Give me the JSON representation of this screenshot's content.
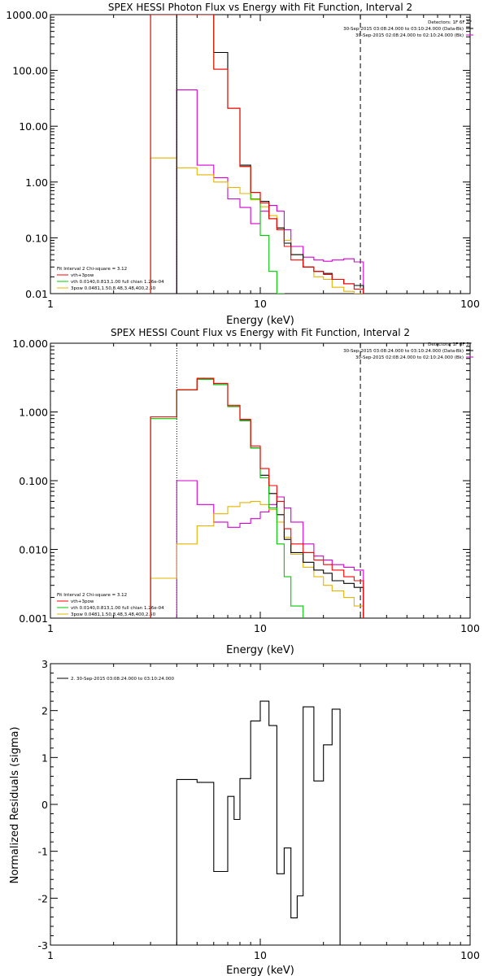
{
  "chart_data": [
    {
      "type": "line",
      "title": "SPEX HESSI Photon Flux vs Energy with Fit Function, Interval 2",
      "xlabel": "Energy (keV)",
      "ylabel": "",
      "xscale": "log",
      "yscale": "log",
      "xlim": [
        1,
        100
      ],
      "ylim": [
        0.01,
        1000
      ],
      "x_tick_labels": [
        "1",
        "10",
        "100"
      ],
      "y_tick_labels": [
        "0.01",
        "0.10",
        "1.00",
        "10.00",
        "100.00",
        "1000.00"
      ],
      "header": [
        "Detectors: 1F 6F 7F",
        "30-Sep-2015 03:08:24.000 to 03:10:24.000 (Data-Bk)",
        "30-Sep-2015 02:08:24.000 to 02:10:24.000 (Bk)"
      ],
      "header_series": [
        "data",
        "background"
      ],
      "fit_info": "Fit Interval 2   Chi-square = 3.12",
      "legend": [
        {
          "label": "vth+3pow",
          "color": "#ff0000"
        },
        {
          "label": "vth 0.0140,0.813,1.00  full chian 1.26e-04",
          "color": "#00c800"
        },
        {
          "label": "3pow 0.0481,1.50,8.48,3.48,400,2.50",
          "color": "#e6b400"
        }
      ],
      "fit_range": {
        "low": 4.0,
        "high": 30.0
      },
      "bin_edges": [
        3,
        4,
        5,
        6,
        7,
        8,
        9,
        10,
        11,
        12,
        13,
        14,
        16,
        18,
        20,
        22,
        25,
        28,
        31
      ],
      "series": [
        {
          "name": "data",
          "color": "#000000",
          "start_edge": 4,
          "values": [
            1000,
            1000,
            210,
            21,
            2.0,
            0.65,
            0.45,
            0.22,
            0.15,
            0.08,
            0.05,
            0.03,
            0.025,
            0.023,
            0.018,
            0.015,
            0.014
          ]
        },
        {
          "name": "vth+3pow",
          "color": "#ff0000",
          "start_edge": 3,
          "values": [
            1000,
            1000,
            1000,
            105,
            21,
            1.9,
            0.65,
            0.42,
            0.22,
            0.14,
            0.07,
            0.04,
            0.03,
            0.025,
            0.022,
            0.018,
            0.015,
            0.012
          ]
        },
        {
          "name": "vth",
          "color": "#00c800",
          "start_edge": 3,
          "values": [
            1000,
            1000,
            1000,
            105,
            21,
            1.9,
            0.5,
            0.11,
            0.025,
            0.009
          ]
        },
        {
          "name": "3pow",
          "color": "#e6b400",
          "start_edge": 3,
          "values": [
            2.7,
            1.8,
            1.35,
            1.0,
            0.8,
            0.62,
            0.48,
            0.36,
            0.25,
            0.15,
            0.09,
            0.05,
            0.03,
            0.02,
            0.018,
            0.013,
            0.011,
            0.009
          ]
        },
        {
          "name": "background",
          "color": "#d200d2",
          "start_edge": 4,
          "values": [
            45,
            2.0,
            1.2,
            0.5,
            0.35,
            0.18,
            0.3,
            0.38,
            0.3,
            0.14,
            0.07,
            0.045,
            0.04,
            0.038,
            0.04,
            0.042,
            0.037
          ]
        }
      ]
    },
    {
      "type": "line",
      "title": "SPEX HESSI Count Flux vs Energy with Fit Function, Interval 2",
      "xlabel": "Energy (keV)",
      "ylabel": "",
      "xscale": "log",
      "yscale": "log",
      "xlim": [
        1,
        100
      ],
      "ylim": [
        0.001,
        10
      ],
      "x_tick_labels": [
        "1",
        "10",
        "100"
      ],
      "y_tick_labels": [
        "0.001",
        "0.010",
        "0.100",
        "1.000",
        "10.000"
      ],
      "header": [
        "Detectors: 1F 6F 7F",
        "30-Sep-2015 03:08:24.000 to 03:10:24.000 (Data-Bk)",
        "30-Sep-2015 02:08:24.000 to 02:10:24.000 (Bk)"
      ],
      "header_series": [
        "data",
        "background"
      ],
      "fit_info": "Fit Interval 2   Chi-square = 3.12",
      "legend": [
        {
          "label": "vth+3pow",
          "color": "#ff0000"
        },
        {
          "label": "vth 0.0140,0.813,1.00  full chian 1.26e-04",
          "color": "#00c800"
        },
        {
          "label": "3pow 0.0481,1.50,8.48,3.48,400,2.50",
          "color": "#e6b400"
        }
      ],
      "fit_range": {
        "low": 4.0,
        "high": 30.0
      },
      "bin_edges": [
        3,
        4,
        5,
        6,
        7,
        8,
        9,
        10,
        11,
        12,
        13,
        14,
        16,
        18,
        20,
        22,
        25,
        28,
        31
      ],
      "series": [
        {
          "name": "data",
          "color": "#000000",
          "start_edge": 3,
          "values": [
            0.85,
            2.1,
            3.0,
            2.5,
            1.2,
            0.75,
            0.3,
            0.12,
            0.065,
            0.032,
            0.014,
            0.009,
            0.0065,
            0.005,
            0.0045,
            0.0035,
            0.0032,
            0.0028
          ]
        },
        {
          "name": "vth+3pow",
          "color": "#ff0000",
          "start_edge": 3,
          "values": [
            0.85,
            2.1,
            3.1,
            2.6,
            1.25,
            0.78,
            0.32,
            0.15,
            0.085,
            0.05,
            0.02,
            0.012,
            0.009,
            0.007,
            0.006,
            0.005,
            0.004,
            0.0035
          ]
        },
        {
          "name": "vth",
          "color": "#00c800",
          "start_edge": 3,
          "values": [
            0.8,
            2.1,
            3.0,
            2.5,
            1.2,
            0.74,
            0.3,
            0.11,
            0.04,
            0.012,
            0.004,
            0.0015
          ]
        },
        {
          "name": "3pow",
          "color": "#e6b400",
          "start_edge": 3,
          "values": [
            0.0038,
            0.012,
            0.022,
            0.033,
            0.042,
            0.048,
            0.05,
            0.045,
            0.038,
            0.025,
            0.015,
            0.0085,
            0.0055,
            0.004,
            0.003,
            0.0025,
            0.002,
            0.0015
          ]
        },
        {
          "name": "background",
          "color": "#d200d2",
          "start_edge": 4,
          "values": [
            0.1,
            0.045,
            0.025,
            0.021,
            0.024,
            0.028,
            0.035,
            0.045,
            0.058,
            0.04,
            0.025,
            0.012,
            0.008,
            0.007,
            0.006,
            0.0055,
            0.005
          ]
        }
      ]
    },
    {
      "type": "line",
      "title": "",
      "xlabel": "Energy (keV)",
      "ylabel": "Normalized Residuals (sigma)",
      "xscale": "log",
      "yscale": "linear",
      "xlim": [
        1,
        100
      ],
      "ylim": [
        -3,
        3
      ],
      "x_tick_labels": [
        "1",
        "10",
        "100"
      ],
      "y_tick_labels": [
        "-3",
        "-2",
        "-1",
        "0",
        "1",
        "2",
        "3"
      ],
      "legend": [
        {
          "label": "2. 30-Sep-2015 03:08:24.000 to 03:10:24.000",
          "color": "#000000"
        }
      ],
      "bin_edges": [
        4,
        5,
        6,
        7,
        7.5,
        8,
        9,
        10,
        11,
        12,
        13,
        14,
        15,
        16,
        18,
        20,
        22,
        24,
        26,
        28,
        30
      ],
      "series": [
        {
          "name": "residuals",
          "color": "#000000",
          "values": [
            0.53,
            0.47,
            -1.43,
            0.17,
            -0.32,
            0.55,
            1.78,
            2.2,
            1.68,
            -1.48,
            -0.93,
            -2.42,
            -1.95,
            2.08,
            0.5,
            1.27,
            2.03
          ]
        }
      ]
    }
  ]
}
